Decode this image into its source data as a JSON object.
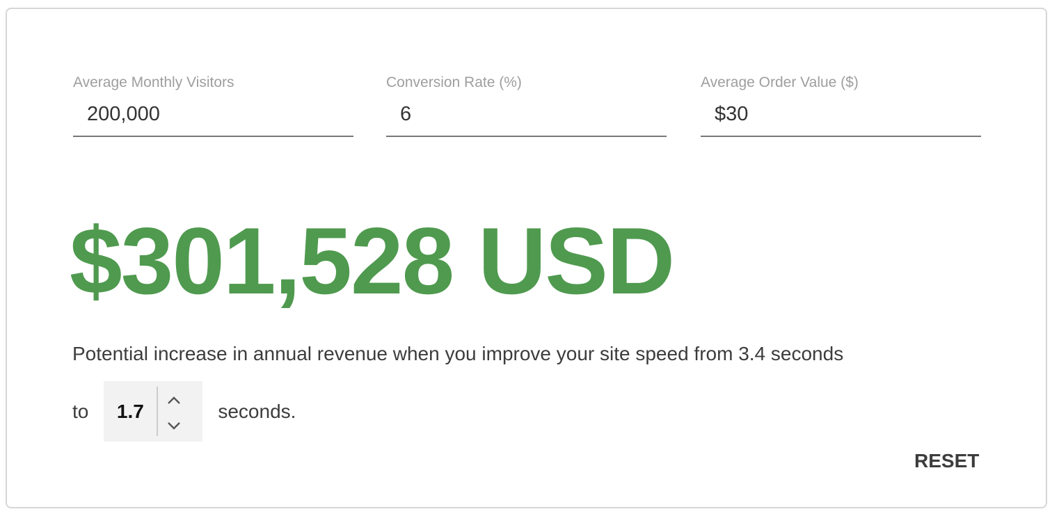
{
  "fields": [
    {
      "label": "Average Monthly Visitors",
      "value": "200,000"
    },
    {
      "label": "Conversion Rate (%)",
      "value": "6"
    },
    {
      "label": "Average Order Value ($)",
      "value": "$30"
    }
  ],
  "result": {
    "amount": "$301,528 USD",
    "color": "#4f9a4f"
  },
  "description": "Potential increase in annual revenue when you improve your site speed from 3.4 seconds",
  "target": {
    "prefix": "to",
    "value": "1.7",
    "suffix": "seconds.",
    "up_icon": "chevron-up-icon",
    "down_icon": "chevron-down-icon"
  },
  "reset_label": "RESET"
}
